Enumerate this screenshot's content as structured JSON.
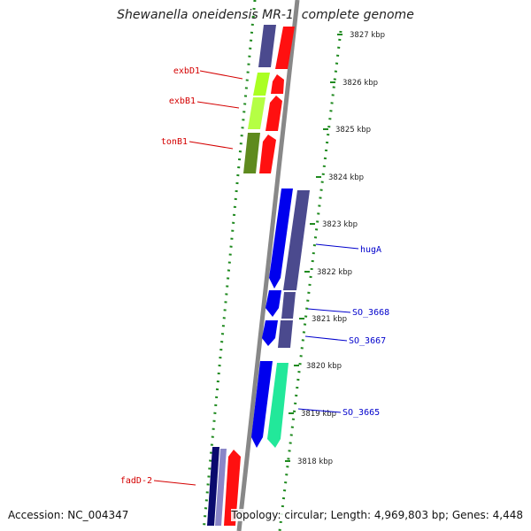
{
  "title": "Shewanella oneidensis MR-1, complete genome",
  "footer": {
    "accession": "Accession: NC_004347",
    "topology": "Topology: circular; Length: 4,969,803 bp; Genes: 4,448"
  },
  "scale_ticks": [
    {
      "label": "3827 kbp"
    },
    {
      "label": "3826 kbp"
    },
    {
      "label": "3825 kbp"
    },
    {
      "label": "3824 kbp"
    },
    {
      "label": "3823 kbp"
    },
    {
      "label": "3822 kbp"
    },
    {
      "label": "3821 kbp"
    },
    {
      "label": "3820 kbp"
    },
    {
      "label": "3819 kbp"
    },
    {
      "label": "3818 kbp"
    }
  ],
  "gene_labels": [
    {
      "text": "exbD1",
      "color": "#d40000"
    },
    {
      "text": "exbB1",
      "color": "#d40000"
    },
    {
      "text": "tonB1",
      "color": "#d40000"
    },
    {
      "text": "hugA",
      "color": "#0000cc"
    },
    {
      "text": "SO_3668",
      "color": "#0000cc"
    },
    {
      "text": "SO_3667",
      "color": "#0000cc"
    },
    {
      "text": "SO_3665",
      "color": "#0000cc"
    },
    {
      "text": "fadD-2",
      "color": "#d40000"
    }
  ],
  "colors": {
    "backbone": "#888888",
    "dots": "#1f8a1f",
    "red_feature": "#ff1010",
    "blue_gene": "#0000ee",
    "purple_gene": "#4b4a8e",
    "lime_gene": "#aaff22",
    "olive_gene": "#5e8a1e",
    "green_gene": "#22e89a",
    "navy_gene": "#0a0a6e"
  }
}
